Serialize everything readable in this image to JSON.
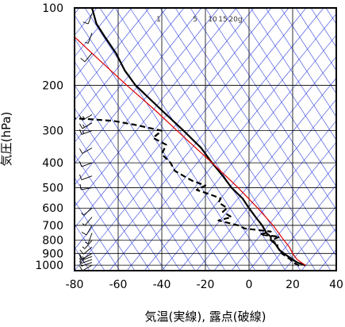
{
  "chart_data": {
    "type": "line",
    "subtype": "skew-T log-P emagram",
    "xlabel": "気温(実線), 露点(破線)",
    "ylabel": "気圧(hPa)",
    "xlim": [
      -80,
      40
    ],
    "ylim": [
      1050,
      100
    ],
    "yscale": "log",
    "xticks": [
      -80,
      -60,
      -40,
      -20,
      0,
      20,
      40
    ],
    "yticks": [
      100,
      200,
      300,
      400,
      500,
      600,
      700,
      800,
      900,
      1000
    ],
    "mixing_ratio_labels": [
      "1",
      "5",
      "10",
      "15",
      "20g"
    ],
    "colors": {
      "temperature": "#000000",
      "dewpoint": "#000000",
      "parcel": "#e00000",
      "guide_lines": "#3344dd",
      "grid": "#000000"
    },
    "series": [
      {
        "style": "solid",
        "points": [
          {
            "p": 1003,
            "t": 26
          },
          {
            "p": 975,
            "t": 22
          },
          {
            "p": 950,
            "t": 20
          },
          {
            "p": 925,
            "t": 18
          },
          {
            "p": 900,
            "t": 16
          },
          {
            "p": 875,
            "t": 14
          },
          {
            "p": 850,
            "t": 13
          },
          {
            "p": 825,
            "t": 12
          },
          {
            "p": 800,
            "t": 10
          },
          {
            "p": 775,
            "t": 10
          },
          {
            "p": 750,
            "t": 8
          },
          {
            "p": 700,
            "t": 6
          },
          {
            "p": 650,
            "t": 3
          },
          {
            "p": 600,
            "t": 0
          },
          {
            "p": 550,
            "t": -3
          },
          {
            "p": 500,
            "t": -8
          },
          {
            "p": 450,
            "t": -12
          },
          {
            "p": 400,
            "t": -17
          },
          {
            "p": 350,
            "t": -22
          },
          {
            "p": 300,
            "t": -30
          },
          {
            "p": 250,
            "t": -40
          },
          {
            "p": 200,
            "t": -52
          },
          {
            "p": 175,
            "t": -57
          },
          {
            "p": 150,
            "t": -61
          },
          {
            "p": 130,
            "t": -66
          },
          {
            "p": 115,
            "t": -70
          },
          {
            "p": 100,
            "t": -72
          }
        ]
      },
      {
        "style": "dashed",
        "points": [
          {
            "p": 1003,
            "t": 23
          },
          {
            "p": 975,
            "t": 20
          },
          {
            "p": 950,
            "t": 19
          },
          {
            "p": 925,
            "t": 17
          },
          {
            "p": 900,
            "t": 15
          },
          {
            "p": 875,
            "t": 14
          },
          {
            "p": 850,
            "t": 13
          },
          {
            "p": 825,
            "t": 13
          },
          {
            "p": 800,
            "t": 10
          },
          {
            "p": 775,
            "t": 14
          },
          {
            "p": 760,
            "t": 5
          },
          {
            "p": 740,
            "t": 10
          },
          {
            "p": 720,
            "t": -2
          },
          {
            "p": 700,
            "t": -5
          },
          {
            "p": 670,
            "t": -14
          },
          {
            "p": 650,
            "t": -8
          },
          {
            "p": 620,
            "t": -12
          },
          {
            "p": 600,
            "t": -10
          },
          {
            "p": 570,
            "t": -14
          },
          {
            "p": 550,
            "t": -13
          },
          {
            "p": 530,
            "t": -18
          },
          {
            "p": 510,
            "t": -24
          },
          {
            "p": 490,
            "t": -20
          },
          {
            "p": 470,
            "t": -26
          },
          {
            "p": 450,
            "t": -30
          },
          {
            "p": 430,
            "t": -34
          },
          {
            "p": 400,
            "t": -36
          },
          {
            "p": 370,
            "t": -40
          },
          {
            "p": 340,
            "t": -38
          },
          {
            "p": 320,
            "t": -44
          },
          {
            "p": 300,
            "t": -40
          },
          {
            "p": 285,
            "t": -52
          },
          {
            "p": 275,
            "t": -62
          },
          {
            "p": 270,
            "t": -75
          },
          {
            "p": 268,
            "t": -84
          }
        ]
      },
      {
        "style": "solid",
        "points": [
          {
            "p": 1003,
            "t": 26
          },
          {
            "p": 950,
            "t": 22
          },
          {
            "p": 900,
            "t": 20
          },
          {
            "p": 850,
            "t": 18.5
          },
          {
            "p": 800,
            "t": 16
          },
          {
            "p": 700,
            "t": 11
          },
          {
            "p": 600,
            "t": 4
          },
          {
            "p": 500,
            "t": -5
          },
          {
            "p": 400,
            "t": -17
          },
          {
            "p": 300,
            "t": -33
          },
          {
            "p": 250,
            "t": -43
          },
          {
            "p": 200,
            "t": -56
          },
          {
            "p": 150,
            "t": -72
          },
          {
            "p": 125,
            "t": -82
          },
          {
            "p": 100,
            "t": -90
          }
        ]
      }
    ],
    "wind_barbs": [
      {
        "p": 1000,
        "dir": 240,
        "kt": 10
      },
      {
        "p": 975,
        "dir": 250,
        "kt": 10
      },
      {
        "p": 950,
        "dir": 250,
        "kt": 15
      },
      {
        "p": 925,
        "dir": 250,
        "kt": 15
      },
      {
        "p": 900,
        "dir": 240,
        "kt": 10
      },
      {
        "p": 850,
        "dir": 230,
        "kt": 10
      },
      {
        "p": 800,
        "dir": 220,
        "kt": 5
      },
      {
        "p": 750,
        "dir": 200,
        "kt": 5
      },
      {
        "p": 700,
        "dir": 210,
        "kt": 10
      },
      {
        "p": 650,
        "dir": 220,
        "kt": 5
      },
      {
        "p": 600,
        "dir": 230,
        "kt": 5
      },
      {
        "p": 500,
        "dir": 260,
        "kt": 10
      },
      {
        "p": 450,
        "dir": 250,
        "kt": 10
      },
      {
        "p": 400,
        "dir": 250,
        "kt": 10
      },
      {
        "p": 350,
        "dir": 240,
        "kt": 10
      },
      {
        "p": 300,
        "dir": 250,
        "kt": 15
      },
      {
        "p": 280,
        "dir": 240,
        "kt": 15
      },
      {
        "p": 260,
        "dir": 240,
        "kt": 15
      },
      {
        "p": 150,
        "dir": 220,
        "kt": 10
      },
      {
        "p": 125,
        "dir": 200,
        "kt": 5
      },
      {
        "p": 105,
        "dir": 200,
        "kt": 10
      }
    ]
  }
}
